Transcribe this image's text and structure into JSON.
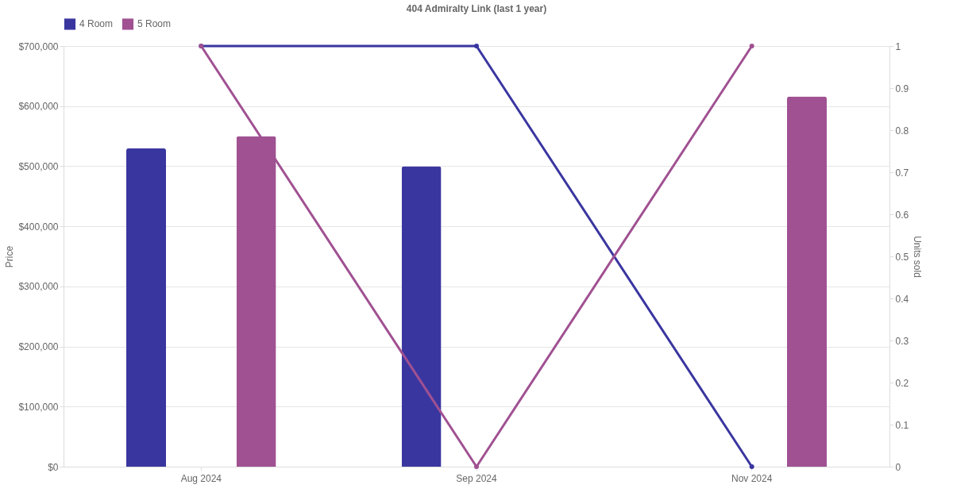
{
  "chart_data": {
    "type": "bar",
    "title": "404 Admiralty Link (last 1 year)",
    "ylabel": "Price",
    "y2label": "Units sold",
    "categories": [
      "Aug 2024",
      "Sep 2024",
      "Nov 2024"
    ],
    "series": [
      {
        "name": "4 Room",
        "color": "#3a36a0",
        "values": [
          530000,
          500000,
          null
        ]
      },
      {
        "name": "5 Room",
        "color": "#a05192",
        "values": [
          550000,
          null,
          616000
        ]
      },
      {
        "type": "line",
        "axis": "y2",
        "color": "#3a36a0",
        "values": [
          1,
          1,
          0
        ]
      },
      {
        "type": "line",
        "axis": "y2",
        "color": "#a05192",
        "values": [
          1,
          0,
          1
        ]
      }
    ],
    "ylim": [
      0,
      700000
    ],
    "yticks": [
      {
        "value": 0,
        "label": "$0"
      },
      {
        "value": 100000,
        "label": "$100,000"
      },
      {
        "value": 200000,
        "label": "$200,000"
      },
      {
        "value": 300000,
        "label": "$300,000"
      },
      {
        "value": 400000,
        "label": "$400,000"
      },
      {
        "value": 500000,
        "label": "$500,000"
      },
      {
        "value": 600000,
        "label": "$600,000"
      },
      {
        "value": 700000,
        "label": "$700,000"
      }
    ],
    "y2lim": [
      0,
      1
    ],
    "y2ticks": [
      0,
      0.1,
      0.2,
      0.3,
      0.4,
      0.5,
      0.6,
      0.7,
      0.8,
      0.9,
      1
    ],
    "grid": "y",
    "legend": "top",
    "marker": "circle"
  }
}
